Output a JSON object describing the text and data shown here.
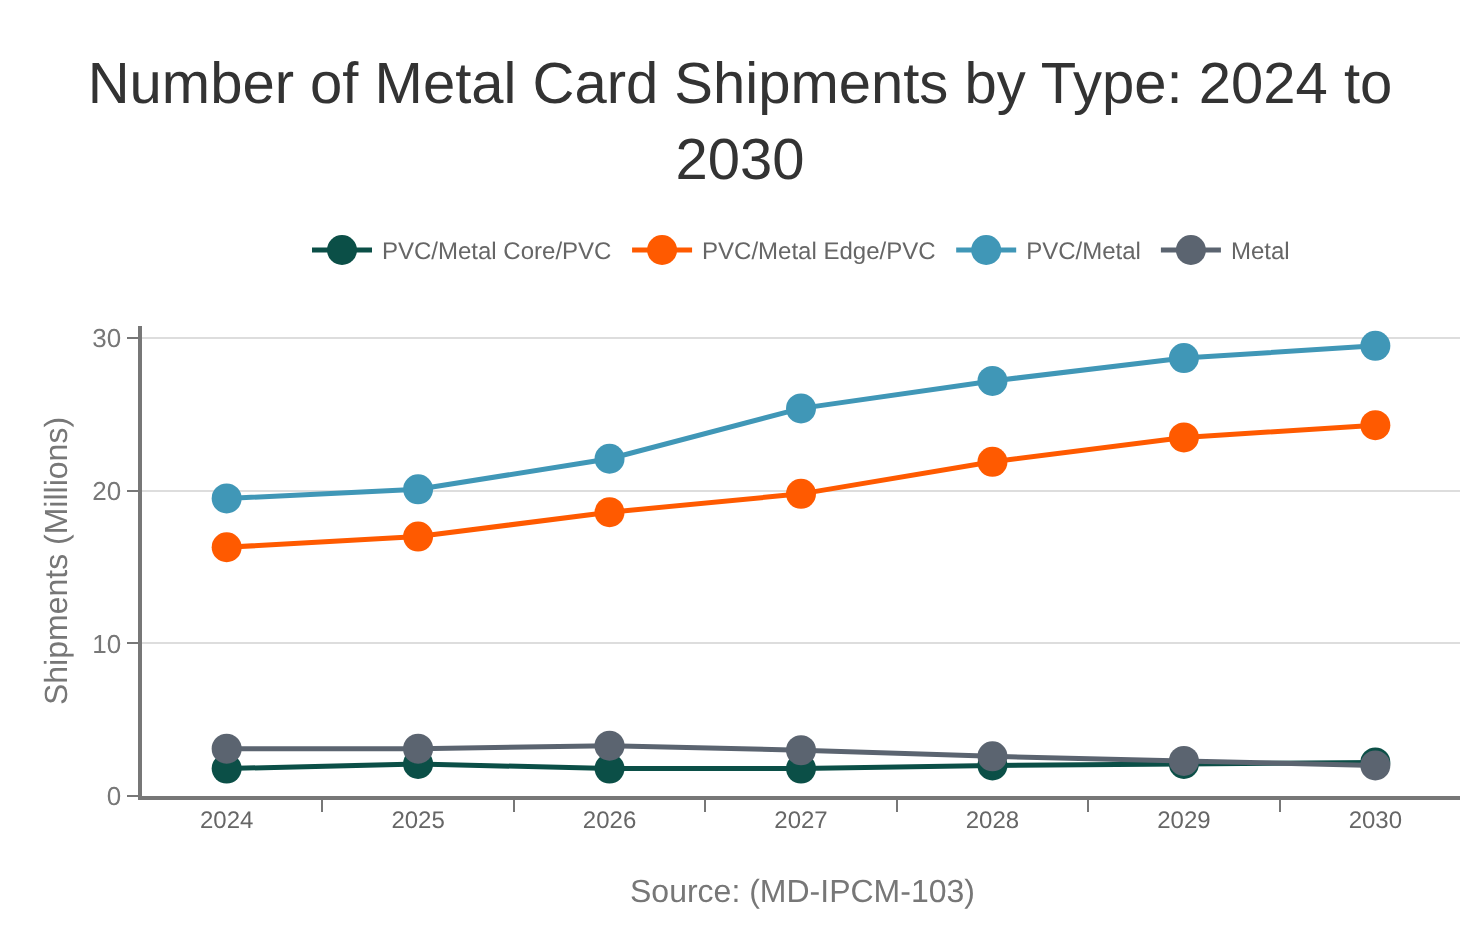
{
  "chart_data": {
    "type": "line",
    "title": "Number of Metal Card Shipments by Type: 2024 to 2030",
    "ylabel": "Shipments (Millions)",
    "categories": [
      "2024",
      "2025",
      "2026",
      "2027",
      "2028",
      "2029",
      "2030"
    ],
    "series": [
      {
        "name": "PVC/Metal Core/PVC",
        "color": "#0b4f47",
        "values": [
          1.8,
          2.1,
          1.8,
          1.8,
          2.0,
          2.1,
          2.2
        ]
      },
      {
        "name": "PVC/Metal Edge/PVC",
        "color": "#ff5a00",
        "values": [
          16.3,
          17.0,
          18.6,
          19.8,
          21.9,
          23.5,
          24.3
        ]
      },
      {
        "name": "PVC/Metal",
        "color": "#4097b7",
        "values": [
          19.5,
          20.1,
          22.1,
          25.4,
          27.2,
          28.7,
          29.5
        ]
      },
      {
        "name": "Metal",
        "color": "#5b6470",
        "values": [
          3.1,
          3.1,
          3.3,
          3.0,
          2.6,
          2.3,
          2.0
        ]
      }
    ],
    "ylim": [
      0,
      30.8
    ],
    "yticks": [
      0,
      10,
      20,
      30
    ],
    "grid": "y",
    "legend": "top",
    "marker": "circle",
    "line_style": "solid",
    "annotations": [
      "Source: (MD-IPCM-103)"
    ]
  }
}
